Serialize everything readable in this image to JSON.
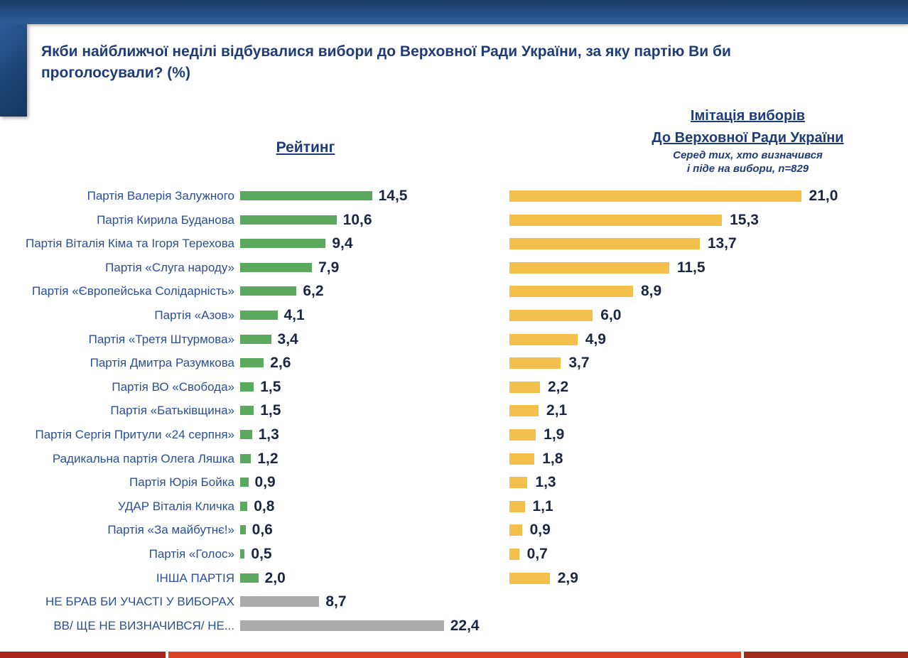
{
  "header": {
    "title": "Якби найближчої неділі відбувалися вибори до Верховної Ради України, за яку партію Ви би проголосували? (%)"
  },
  "left_chart": {
    "title": "Рейтинг"
  },
  "right_chart": {
    "title_line1": "Імітація виборів",
    "title_line2": "До Верховної Ради України",
    "subtitle_line1": "Серед тих, хто визначився",
    "subtitle_line2": "і піде на вибори, n=829"
  },
  "colors": {
    "title_blue": "#1e3c78",
    "label_blue": "#2a4f96",
    "value_navy": "#1b2742",
    "rating_green": "#5aa95e",
    "rating_gray": "#ababab",
    "imitation_yellow": "#f3c04b",
    "footer_dark_red": "#a8231b",
    "footer_orange_red": "#de4326",
    "footer_maroon": "#9d2a1d"
  },
  "chart_data": {
    "type": "bar",
    "orientation": "horizontal",
    "title": "Якби найближчої неділі відбувалися вибори до Верховної Ради України, за яку партію Ви би проголосували? (%)",
    "value_format": "comma-decimal",
    "grid": false,
    "categories": [
      "Партія Валерія Залужного",
      "Партія Кирила Буданова",
      "Партія Віталія Кіма та Ігоря Терехова",
      "Партія «Слуга народу»",
      "Партія «Європейська Солідарність»",
      "Партія «Азов»",
      "Партія «Третя Штурмова»",
      "Партія Дмитра Разумкова",
      "Партія ВО «Свобода»",
      "Партія «Батьківщина»",
      "Партія Сергія Притули «24 серпня»",
      "Радикальна партія Олега Ляшка",
      "Партія Юрія Бойка",
      "УДАР Віталія Кличка",
      "Партія «За майбутнє!»",
      "Партія «Голос»",
      "ІНША ПАРТІЯ",
      "НЕ БРАВ БИ УЧАСТІ У ВИБОРАХ",
      "ВВ/ ЩЕ НЕ ВИЗНАЧИВСЯ/ НЕ..."
    ],
    "series": [
      {
        "name": "Рейтинг",
        "values": [
          14.5,
          10.6,
          9.4,
          7.9,
          6.2,
          4.1,
          3.4,
          2.6,
          1.5,
          1.5,
          1.3,
          1.2,
          0.9,
          0.8,
          0.6,
          0.5,
          2.0,
          8.7,
          22.4
        ]
      },
      {
        "name": "Імітація виборів до Верховної Ради України (серед тих, хто визначився і піде на вибори, n=829)",
        "values": [
          21.0,
          15.3,
          13.7,
          11.5,
          8.9,
          6.0,
          4.9,
          3.7,
          2.2,
          2.1,
          1.9,
          1.8,
          1.3,
          1.1,
          0.9,
          0.7,
          2.9,
          null,
          null
        ]
      }
    ]
  },
  "rows": [
    {
      "label": "Партія Валерія Залужного",
      "rating": "14,5",
      "rating_value": 14.5,
      "bar_style": "green",
      "imitation": "21,0",
      "imitation_value": 21.0
    },
    {
      "label": "Партія Кирила Буданова",
      "rating": "10,6",
      "rating_value": 10.6,
      "bar_style": "green",
      "imitation": "15,3",
      "imitation_value": 15.3
    },
    {
      "label": "Партія Віталія Кіма та Ігоря Терехова",
      "rating": "9,4",
      "rating_value": 9.4,
      "bar_style": "green",
      "imitation": "13,7",
      "imitation_value": 13.7
    },
    {
      "label": "Партія «Слуга народу»",
      "rating": "7,9",
      "rating_value": 7.9,
      "bar_style": "green",
      "imitation": "11,5",
      "imitation_value": 11.5
    },
    {
      "label": "Партія «Європейська Солідарність»",
      "rating": "6,2",
      "rating_value": 6.2,
      "bar_style": "green",
      "imitation": "8,9",
      "imitation_value": 8.9
    },
    {
      "label": "Партія «Азов»",
      "rating": "4,1",
      "rating_value": 4.1,
      "bar_style": "green",
      "imitation": "6,0",
      "imitation_value": 6.0
    },
    {
      "label": "Партія «Третя Штурмова»",
      "rating": "3,4",
      "rating_value": 3.4,
      "bar_style": "green",
      "imitation": "4,9",
      "imitation_value": 4.9
    },
    {
      "label": "Партія Дмитра Разумкова",
      "rating": "2,6",
      "rating_value": 2.6,
      "bar_style": "green",
      "imitation": "3,7",
      "imitation_value": 3.7
    },
    {
      "label": "Партія ВО «Свобода»",
      "rating": "1,5",
      "rating_value": 1.5,
      "bar_style": "green",
      "imitation": "2,2",
      "imitation_value": 2.2
    },
    {
      "label": "Партія «Батьківщина»",
      "rating": "1,5",
      "rating_value": 1.5,
      "bar_style": "green",
      "imitation": "2,1",
      "imitation_value": 2.1
    },
    {
      "label": "Партія Сергія Притули «24 серпня»",
      "rating": "1,3",
      "rating_value": 1.3,
      "bar_style": "green",
      "imitation": "1,9",
      "imitation_value": 1.9
    },
    {
      "label": "Радикальна партія Олега Ляшка",
      "rating": "1,2",
      "rating_value": 1.2,
      "bar_style": "green",
      "imitation": "1,8",
      "imitation_value": 1.8
    },
    {
      "label": "Партія Юрія Бойка",
      "rating": "0,9",
      "rating_value": 0.9,
      "bar_style": "green",
      "imitation": "1,3",
      "imitation_value": 1.3
    },
    {
      "label": "УДАР Віталія Кличка",
      "rating": "0,8",
      "rating_value": 0.8,
      "bar_style": "green",
      "imitation": "1,1",
      "imitation_value": 1.1
    },
    {
      "label": "Партія «За майбутнє!»",
      "rating": "0,6",
      "rating_value": 0.6,
      "bar_style": "green",
      "imitation": "0,9",
      "imitation_value": 0.9
    },
    {
      "label": "Партія «Голос»",
      "rating": "0,5",
      "rating_value": 0.5,
      "bar_style": "green",
      "imitation": "0,7",
      "imitation_value": 0.7
    },
    {
      "label": "ІНША ПАРТІЯ",
      "rating": "2,0",
      "rating_value": 2.0,
      "bar_style": "green",
      "imitation": "2,9",
      "imitation_value": 2.9
    },
    {
      "label": "НЕ БРАВ БИ УЧАСТІ У ВИБОРАХ",
      "rating": "8,7",
      "rating_value": 8.7,
      "bar_style": "gray",
      "imitation": null,
      "imitation_value": null
    },
    {
      "label": "ВВ/ ЩЕ НЕ ВИЗНАЧИВСЯ/ НЕ...",
      "rating": "22,4",
      "rating_value": 22.4,
      "bar_style": "gray",
      "imitation": null,
      "imitation_value": null
    }
  ]
}
